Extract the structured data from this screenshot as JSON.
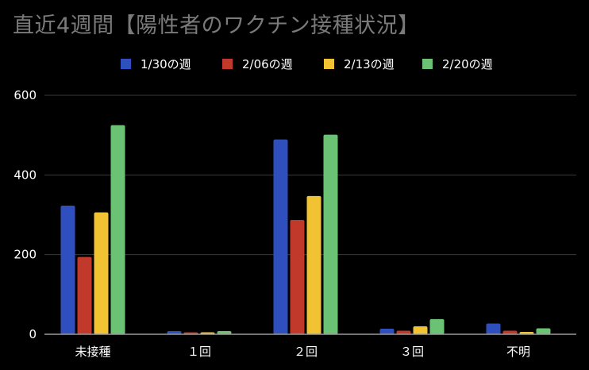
{
  "chart_data": {
    "type": "bar",
    "title": "直近4週間【陽性者のワクチン接種状況】",
    "categories": [
      "未接種",
      "１回",
      "２回",
      "３回",
      "不明"
    ],
    "series": [
      {
        "name": "1/30の週",
        "color": "#2f4fbf",
        "values": [
          323,
          8,
          489,
          14,
          27
        ]
      },
      {
        "name": "2/06の週",
        "color": "#c0392b",
        "values": [
          194,
          5,
          287,
          9,
          9
        ]
      },
      {
        "name": "2/13の週",
        "color": "#f1c232",
        "values": [
          306,
          5,
          347,
          20,
          6
        ]
      },
      {
        "name": "2/20の週",
        "color": "#6cc274",
        "values": [
          525,
          8,
          501,
          38,
          15
        ]
      }
    ],
    "xlabel": "",
    "ylabel": "",
    "ylim": [
      0,
      600
    ],
    "yticks": [
      0,
      200,
      400,
      600
    ],
    "legend_position": "top",
    "grid": true
  },
  "colors": {
    "background": "#000000",
    "grid": "#3a3a3a",
    "axis": "#9a9a9a",
    "title": "#7a7a7a",
    "text": "#ffffff"
  }
}
